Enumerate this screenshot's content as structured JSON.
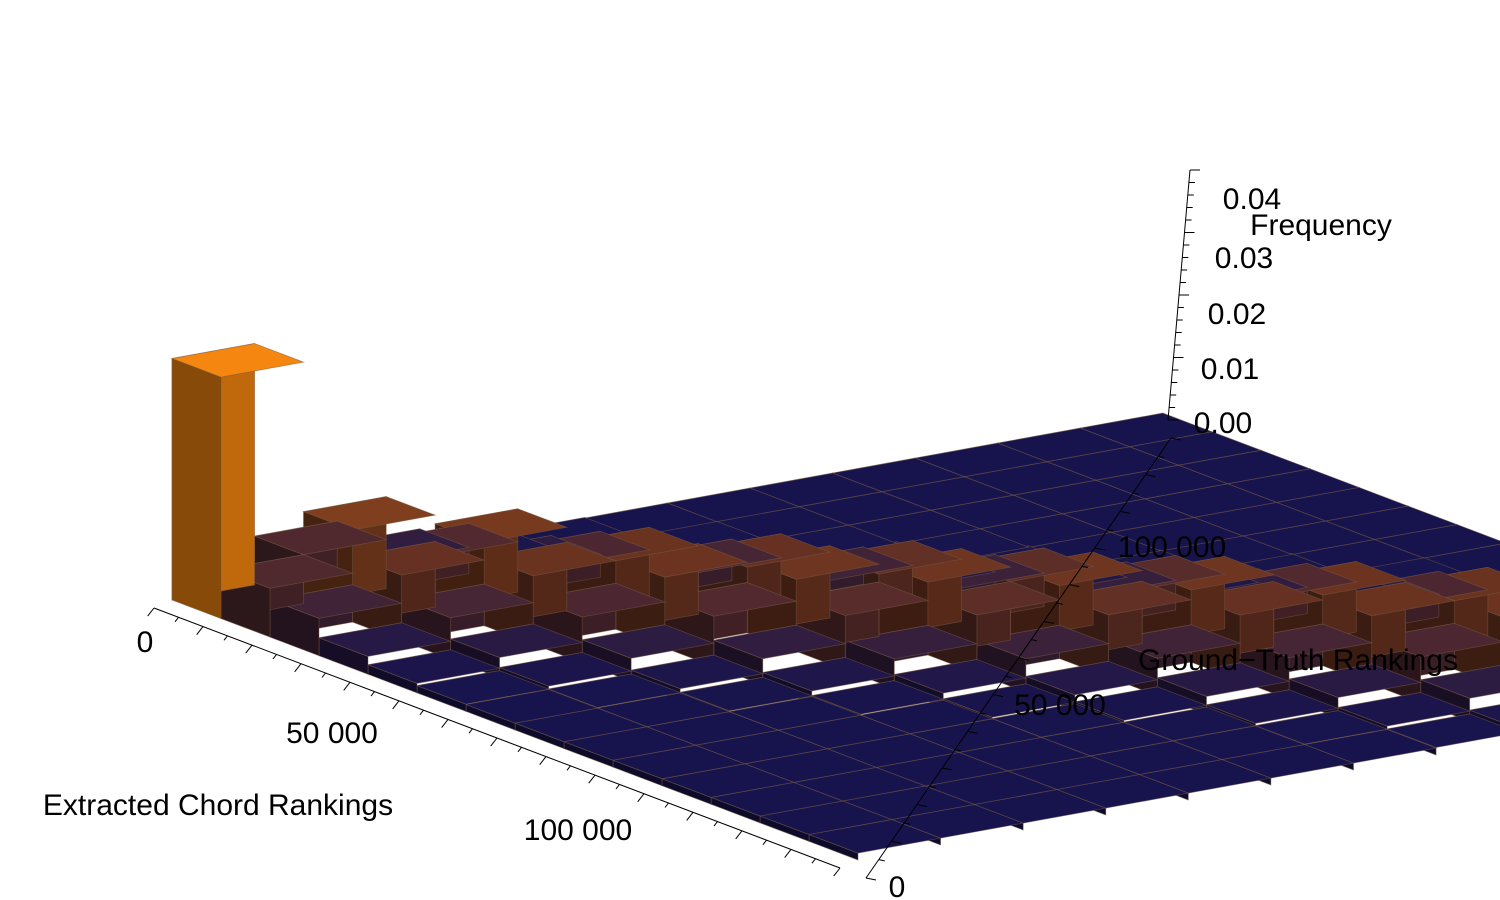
{
  "chart_data": {
    "type": "bar3d",
    "title": "",
    "xlabel": "Extracted Chord Rankings",
    "ylabel": "Ground−Truth Rankings",
    "zlabel": "Frequency",
    "x_ticks": [
      "0",
      "50 000",
      "100 000"
    ],
    "x_tick_values": [
      0,
      50000,
      100000
    ],
    "y_ticks": [
      "0",
      "50 000",
      "100 000"
    ],
    "y_tick_values": [
      0,
      50000,
      100000
    ],
    "z_ticks": [
      "0.00",
      "0.01",
      "0.02",
      "0.03",
      "0.04"
    ],
    "z_tick_values": [
      0,
      0.01,
      0.02,
      0.03,
      0.04
    ],
    "x_range": [
      0,
      140000
    ],
    "y_range": [
      0,
      120000
    ],
    "zlim": [
      0,
      0.04
    ],
    "bins_x": 14,
    "bins_y": 12,
    "bin_width": 10000,
    "colors": {
      "low": "#0e1052",
      "mid": "#6b3320",
      "high": "#f5860f"
    },
    "note_values": "frequency per bin; concentrated along the diagonal (rank agreement), peaks of ~0.042 near (0,0) and ~0.039 at the far corner"
  }
}
